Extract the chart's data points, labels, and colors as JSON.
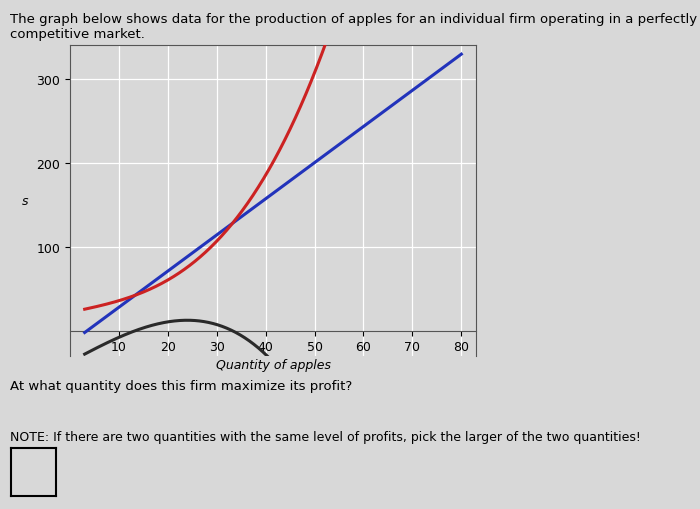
{
  "title_line1": "The graph below shows data for the production of apples for an individual firm operating in a perfectly",
  "title_line2": "competitive market.",
  "xlabel": "Quantity of apples",
  "ylabel": "s",
  "xlim": [
    0,
    83
  ],
  "ylim": [
    -30,
    340
  ],
  "xticks": [
    10,
    20,
    30,
    40,
    50,
    60,
    70,
    80
  ],
  "yticks": [
    100,
    200,
    300
  ],
  "x_start": 3,
  "x_end": 80,
  "tr_color": "#2233bb",
  "tc_color": "#cc2222",
  "profit_color": "#2a2a2a",
  "background_color": "#d8d8d8",
  "question_text": "At what quantity does this firm maximize its profit?",
  "note_text": "NOTE: If there are two quantities with the same level of profits, pick the larger of the two quantities!",
  "title_fontsize": 9.5,
  "axis_label_fontsize": 9,
  "tick_fontsize": 9,
  "tr_slope": 4.3,
  "tr_intercept": -15,
  "tc_a": 0.0018,
  "tc_b": 0.0,
  "tc_c": 1.2,
  "tc_d": 22
}
